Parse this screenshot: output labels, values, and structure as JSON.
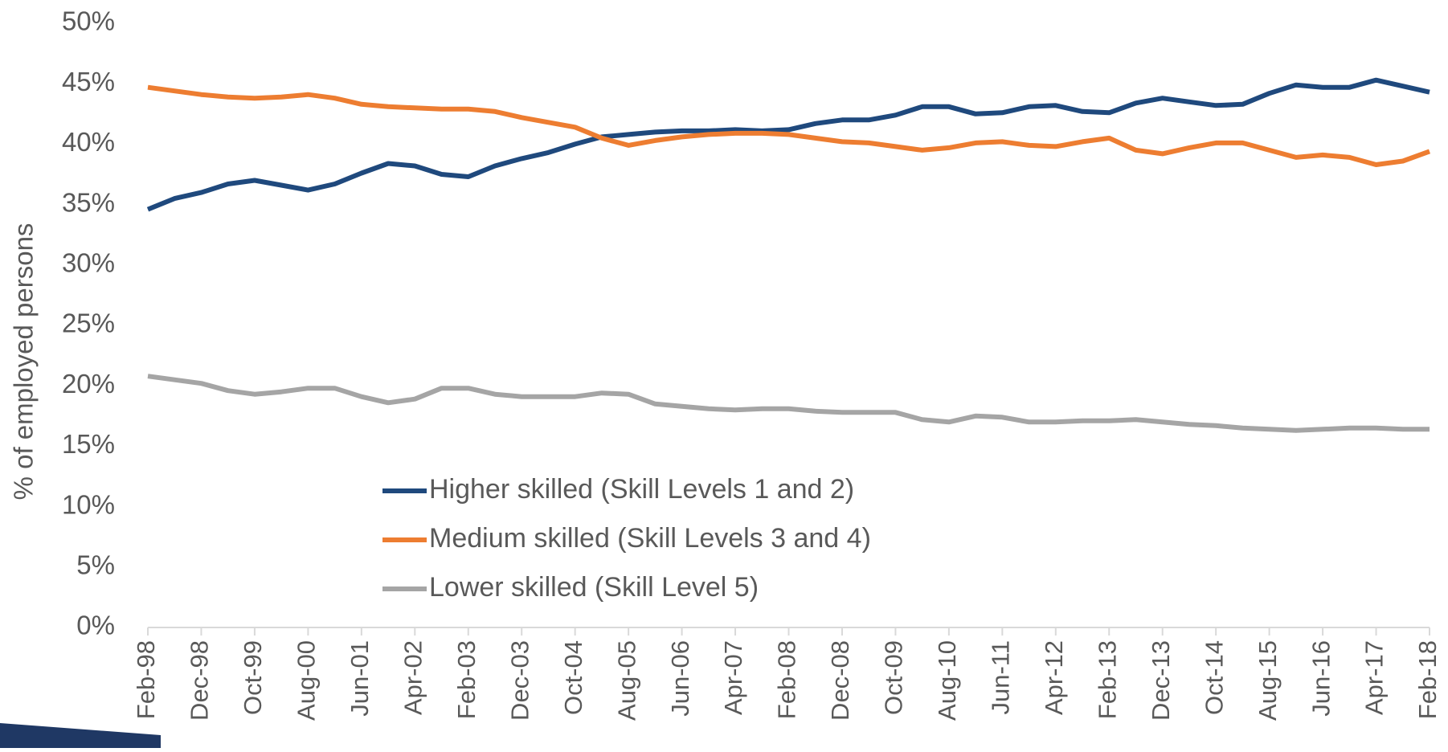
{
  "chart_data": {
    "type": "line",
    "y_label": "% of employed persons",
    "categories": [
      "Feb-98",
      null,
      "Dec-98",
      null,
      "Oct-99",
      null,
      "Aug-00",
      null,
      "Jun-01",
      null,
      "Apr-02",
      null,
      "Feb-03",
      null,
      "Dec-03",
      null,
      "Oct-04",
      null,
      "Aug-05",
      null,
      "Jun-06",
      null,
      "Apr-07",
      null,
      "Feb-08",
      null,
      "Dec-08",
      null,
      "Oct-09",
      null,
      "Aug-10",
      null,
      "Jun-11",
      null,
      "Apr-12",
      null,
      "Feb-13",
      null,
      "Dec-13",
      null,
      "Oct-14",
      null,
      "Aug-15",
      null,
      "Jun-16",
      null,
      "Apr-17",
      null,
      "Feb-18"
    ],
    "series": [
      {
        "name": "Higher skilled (Skill Levels 1 and 2)",
        "color": "#1f497d",
        "values": [
          34.6,
          35.5,
          36.0,
          36.7,
          37.0,
          36.6,
          36.2,
          36.7,
          37.6,
          38.4,
          38.2,
          37.5,
          37.3,
          38.2,
          38.8,
          39.3,
          40.0,
          40.6,
          40.8,
          41.0,
          41.1,
          41.1,
          41.2,
          41.1,
          41.2,
          41.7,
          42.0,
          42.0,
          42.4,
          43.1,
          43.1,
          42.5,
          42.6,
          43.1,
          43.2,
          42.7,
          42.6,
          43.4,
          43.8,
          43.5,
          43.2,
          43.3,
          44.2,
          44.9,
          44.7,
          44.7,
          45.3,
          44.8,
          44.3
        ]
      },
      {
        "name": "Medium skilled (Skill Levels 3 and 4)",
        "color": "#ed7d31",
        "values": [
          44.7,
          44.4,
          44.1,
          43.9,
          43.8,
          43.9,
          44.1,
          43.8,
          43.3,
          43.1,
          43.0,
          42.9,
          42.9,
          42.7,
          42.2,
          41.8,
          41.4,
          40.5,
          39.9,
          40.3,
          40.6,
          40.8,
          40.9,
          40.9,
          40.8,
          40.5,
          40.2,
          40.1,
          39.8,
          39.5,
          39.7,
          40.1,
          40.2,
          39.9,
          39.8,
          40.2,
          40.5,
          39.5,
          39.2,
          39.7,
          40.1,
          40.1,
          39.5,
          38.9,
          39.1,
          38.9,
          38.3,
          38.6,
          39.4
        ]
      },
      {
        "name": "Lower skilled (Skill Level 5)",
        "color": "#a5a5a5",
        "values": [
          20.8,
          20.5,
          20.2,
          19.6,
          19.3,
          19.5,
          19.8,
          19.8,
          19.1,
          18.6,
          18.9,
          19.8,
          19.8,
          19.3,
          19.1,
          19.1,
          19.1,
          19.4,
          19.3,
          18.5,
          18.3,
          18.1,
          18.0,
          18.1,
          18.1,
          17.9,
          17.8,
          17.8,
          17.8,
          17.2,
          17.0,
          17.5,
          17.4,
          17.0,
          17.0,
          17.1,
          17.1,
          17.2,
          17.0,
          16.8,
          16.7,
          16.5,
          16.4,
          16.3,
          16.4,
          16.5,
          16.5,
          16.4,
          16.4
        ]
      }
    ],
    "ylim": [
      0,
      50
    ],
    "yticks": [
      {
        "value": 0,
        "label": "0%"
      },
      {
        "value": 5,
        "label": "5%"
      },
      {
        "value": 10,
        "label": "10%"
      },
      {
        "value": 15,
        "label": "15%"
      },
      {
        "value": 20,
        "label": "20%"
      },
      {
        "value": 25,
        "label": "25%"
      },
      {
        "value": 30,
        "label": "30%"
      },
      {
        "value": 35,
        "label": "35%"
      },
      {
        "value": 40,
        "label": "40%"
      },
      {
        "value": 45,
        "label": "45%"
      },
      {
        "value": 50,
        "label": "50%"
      }
    ],
    "grid": false
  }
}
